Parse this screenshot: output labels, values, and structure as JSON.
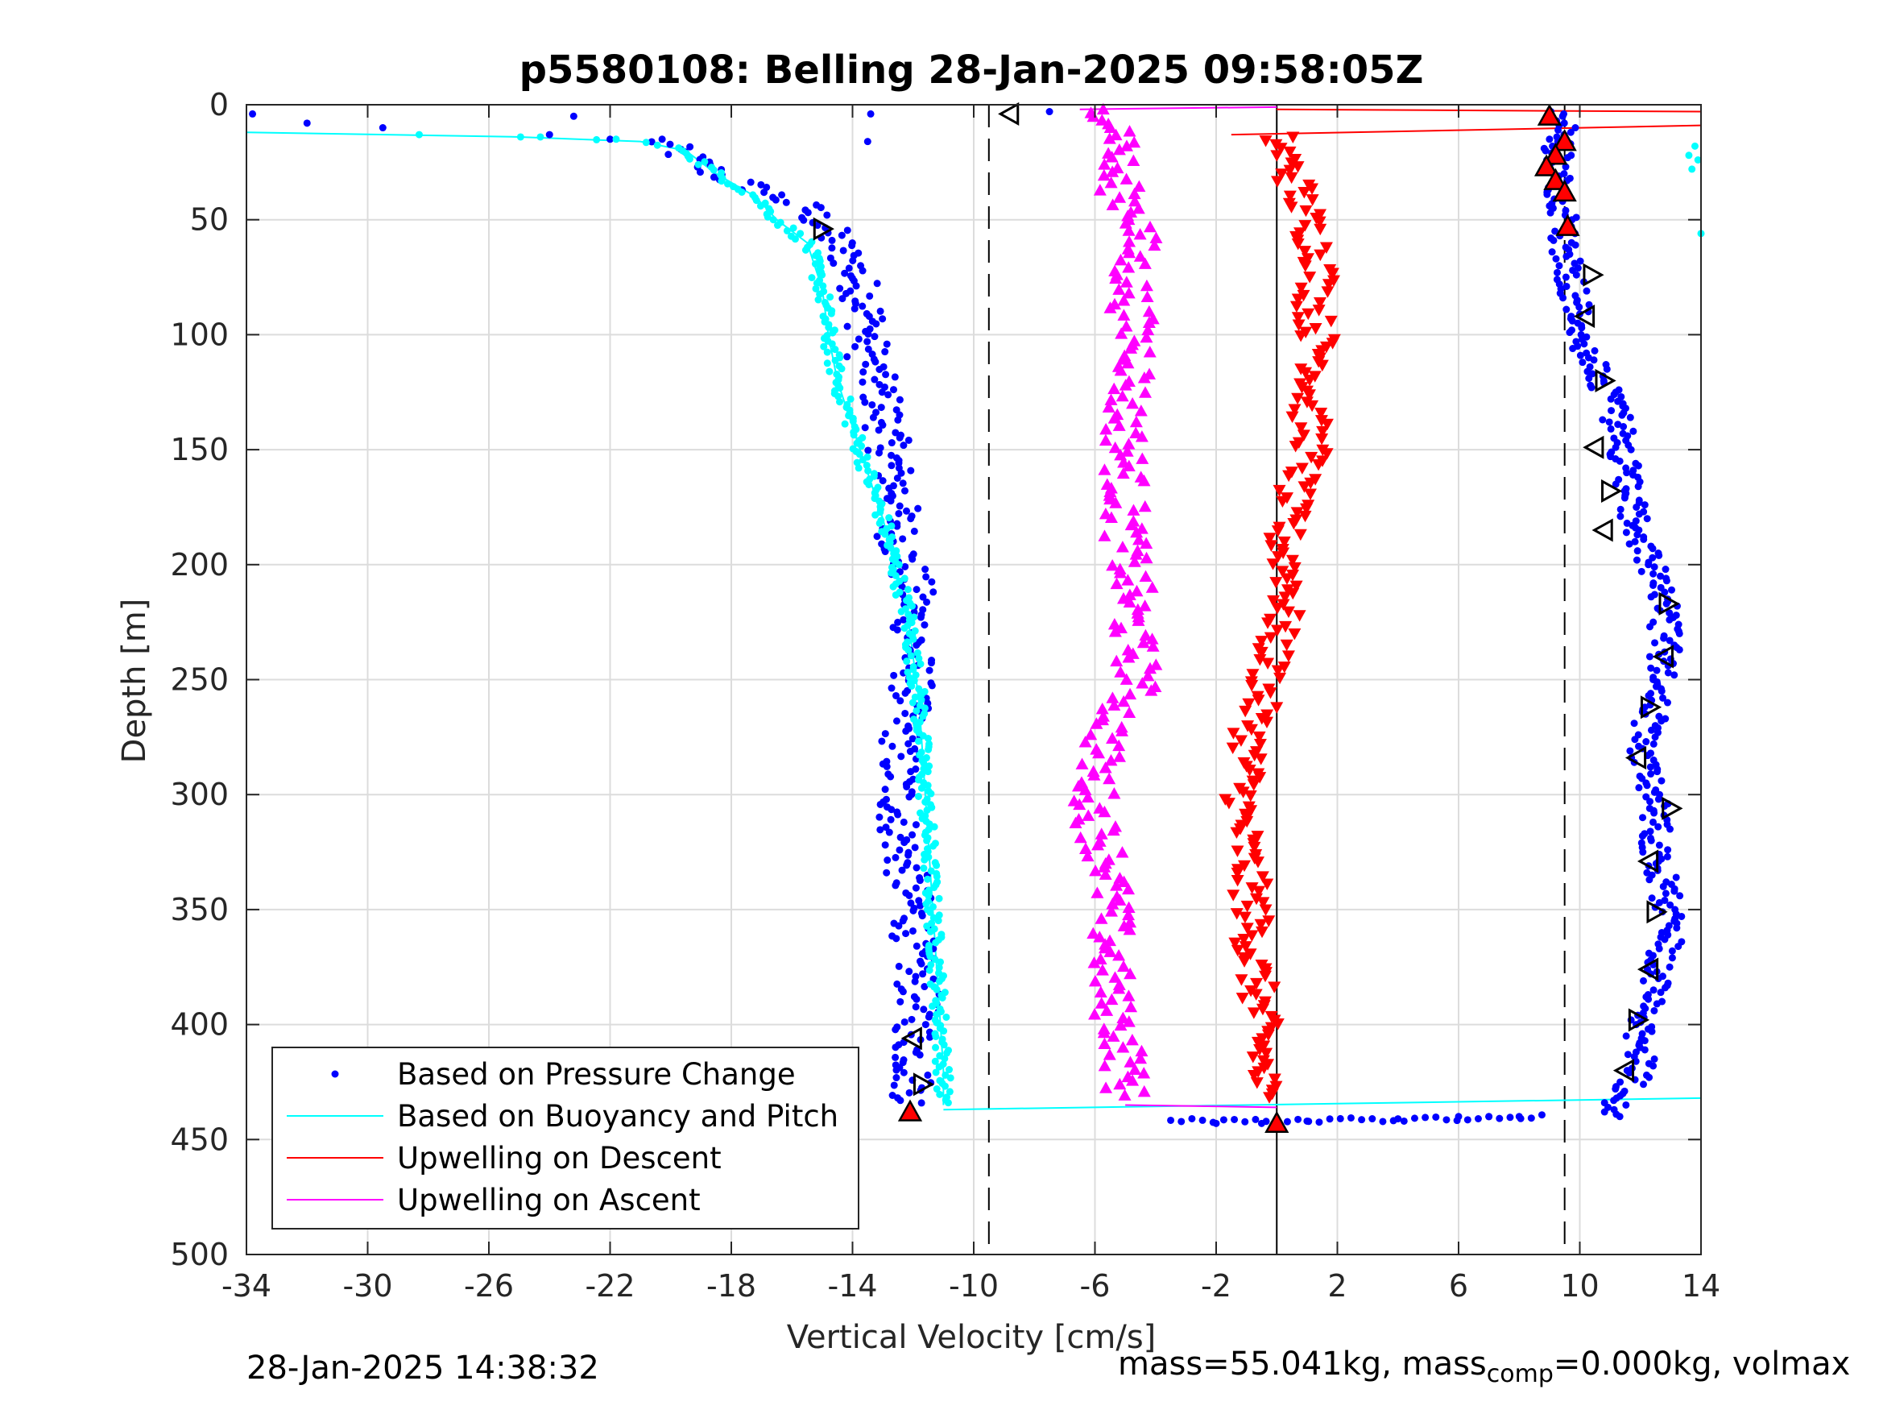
{
  "chart_data": {
    "type": "scatter",
    "title": "p5580108: Belling 28-Jan-2025 09:58:05Z",
    "xlabel": "Vertical Velocity [cm/s]",
    "ylabel": "Depth [m]",
    "xlim": [
      -34,
      14
    ],
    "ylim": [
      500,
      0
    ],
    "y_reversed": true,
    "xticks": [
      -34,
      -30,
      -26,
      -22,
      -18,
      -14,
      -10,
      -6,
      -2,
      2,
      6,
      10,
      14
    ],
    "yticks": [
      0,
      50,
      100,
      150,
      200,
      250,
      300,
      350,
      400,
      450,
      500
    ],
    "grid": true,
    "legend_position": "bottom-left",
    "vertical_reference_lines": [
      {
        "x": -9.5,
        "style": "dashed"
      },
      {
        "x": 9.5,
        "style": "dashed"
      },
      {
        "x": 0,
        "style": "solid"
      }
    ],
    "series": [
      {
        "name": "Based on Pressure Change",
        "color": "#0000ff",
        "marker": "dot",
        "descent": {
          "depth": [
            5,
            15,
            30,
            45,
            55,
            70,
            90,
            110,
            130,
            150,
            170,
            190,
            210,
            230,
            250,
            270,
            290,
            310,
            330,
            350,
            370,
            390,
            410,
            430
          ],
          "velocity": [
            -20,
            -20.5,
            -18.5,
            -15.5,
            -14.8,
            -14,
            -13.5,
            -13.5,
            -13,
            -12.8,
            -12.5,
            -12.5,
            -12,
            -12,
            -12,
            -12.3,
            -12.5,
            -12.5,
            -12.3,
            -12,
            -12,
            -11.8,
            -12,
            -12
          ]
        },
        "ascent": {
          "depth": [
            440,
            430,
            420,
            400,
            380,
            360,
            340,
            320,
            300,
            280,
            260,
            240,
            220,
            200,
            180,
            160,
            140,
            120,
            100,
            80,
            60,
            45,
            30,
            15,
            5
          ],
          "velocity": [
            11,
            11.5,
            12,
            12,
            12.5,
            13,
            12.8,
            12.5,
            12.5,
            12,
            12.5,
            12.8,
            12.8,
            12.3,
            11.8,
            11.5,
            11.3,
            10.8,
            10,
            9.8,
            9.5,
            9.5,
            9.3,
            9.3,
            9.5
          ]
        },
        "transition_points": {
          "depth": [
            4,
            8,
            10,
            13,
            15,
            16,
            5,
            4,
            3,
            443,
            443,
            442,
            441,
            440,
            440,
            440
          ],
          "velocity": [
            -33.8,
            -32,
            -29.5,
            -24,
            -22,
            -13.5,
            -23.2,
            -13.4,
            -7.5,
            -2,
            -0.5,
            1,
            4,
            6,
            7,
            8
          ]
        }
      },
      {
        "name": "Based on Buoyancy and Pitch",
        "color": "#00ffff",
        "marker": "line-dot",
        "depth": [
          12,
          14,
          16,
          20,
          30,
          40,
          50,
          60,
          80,
          100,
          120,
          140,
          160,
          180,
          200,
          220,
          240,
          260,
          280,
          300,
          320,
          340,
          360,
          380,
          400,
          420,
          435
        ],
        "velocity": [
          -34,
          -25,
          -21,
          -19.5,
          -18.5,
          -17.2,
          -16.5,
          -15.5,
          -15,
          -14.8,
          -14.5,
          -14,
          -13.5,
          -13,
          -12.6,
          -12.2,
          -12,
          -11.8,
          -11.7,
          -11.6,
          -11.5,
          -11.4,
          -11.3,
          -11.2,
          -11.1,
          -11,
          -11
        ]
      },
      {
        "name": "Upwelling on Descent",
        "color": "#ff0000",
        "marker": "triangle-down",
        "depth": [
          15,
          30,
          50,
          70,
          90,
          110,
          130,
          150,
          170,
          190,
          210,
          230,
          250,
          270,
          290,
          310,
          330,
          350,
          370,
          390,
          410,
          430
        ],
        "velocity": [
          0,
          0.5,
          1,
          1.5,
          1.2,
          1.5,
          1,
          1.2,
          0.5,
          0.2,
          0.5,
          0,
          -0.3,
          -0.8,
          -1,
          -1.2,
          -1,
          -0.8,
          -0.8,
          -0.6,
          -0.5,
          -0.5
        ]
      },
      {
        "name": "Upwelling on Ascent",
        "color": "#ff00ff",
        "marker": "triangle-up",
        "depth": [
          2,
          15,
          30,
          50,
          70,
          90,
          110,
          130,
          150,
          170,
          190,
          210,
          230,
          250,
          270,
          290,
          310,
          330,
          350,
          370,
          390,
          410,
          430
        ],
        "velocity": [
          -5.5,
          -5,
          -5.5,
          -4.5,
          -4.8,
          -4.8,
          -4.5,
          -5,
          -5,
          -5,
          -5,
          -4.8,
          -4.8,
          -4.5,
          -5.5,
          -6,
          -6,
          -5.5,
          -5.5,
          -5.5,
          -5.5,
          -5,
          -5
        ]
      }
    ],
    "triangle_markers": {
      "red_outlined": [
        {
          "x": 9,
          "y": 5
        },
        {
          "x": 9.5,
          "y": 16
        },
        {
          "x": 9.2,
          "y": 22
        },
        {
          "x": 8.9,
          "y": 27
        },
        {
          "x": 9.2,
          "y": 33
        },
        {
          "x": 9.5,
          "y": 38
        },
        {
          "x": 9.6,
          "y": 53
        },
        {
          "x": -12.1,
          "y": 438
        },
        {
          "x": 0,
          "y": 443
        }
      ],
      "black_outlined": [
        {
          "x": -8.8,
          "y": 4,
          "dir": "left"
        },
        {
          "x": -15,
          "y": 54,
          "dir": "right"
        },
        {
          "x": 10.4,
          "y": 74,
          "dir": "right"
        },
        {
          "x": 10.2,
          "y": 92,
          "dir": "left"
        },
        {
          "x": 10.8,
          "y": 120,
          "dir": "right"
        },
        {
          "x": 10.5,
          "y": 149,
          "dir": "left"
        },
        {
          "x": 11,
          "y": 168,
          "dir": "right"
        },
        {
          "x": 10.8,
          "y": 185,
          "dir": "left"
        },
        {
          "x": 12.9,
          "y": 217,
          "dir": "right"
        },
        {
          "x": 12.8,
          "y": 240,
          "dir": "left"
        },
        {
          "x": 12.3,
          "y": 262,
          "dir": "right"
        },
        {
          "x": 11.9,
          "y": 284,
          "dir": "left"
        },
        {
          "x": 13,
          "y": 306,
          "dir": "right"
        },
        {
          "x": 12.3,
          "y": 329,
          "dir": "left"
        },
        {
          "x": 12.5,
          "y": 351,
          "dir": "right"
        },
        {
          "x": 12.3,
          "y": 376,
          "dir": "left"
        },
        {
          "x": 11.9,
          "y": 398,
          "dir": "right"
        },
        {
          "x": 11.5,
          "y": 420,
          "dir": "left"
        },
        {
          "x": -12,
          "y": 406,
          "dir": "left"
        },
        {
          "x": -11.7,
          "y": 426,
          "dir": "right"
        }
      ]
    }
  },
  "footer": {
    "timestamp": "28-Jan-2025 14:38:32",
    "mass_text": "mass=55.041kg, mass",
    "mass_sub": "comp",
    "mass_rest": "=0.000kg, volmax"
  }
}
